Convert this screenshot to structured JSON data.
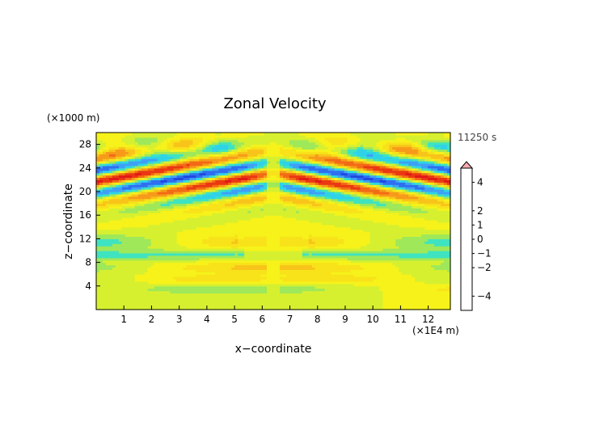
{
  "chart_data": {
    "type": "heatmap",
    "title": "Zonal Velocity",
    "xlabel": "x−coordinate",
    "ylabel": "z−coordinate",
    "x_unit": "(×1E4 m)",
    "y_unit": "(×1000 m)",
    "time_label": "11250 s",
    "xlim": [
      0,
      12.8
    ],
    "ylim": [
      0,
      30
    ],
    "x_ticks": [
      1,
      2,
      3,
      4,
      5,
      6,
      7,
      8,
      9,
      10,
      11,
      12
    ],
    "x_tick_labels": [
      "1",
      "2",
      "3",
      "4",
      "5",
      "6",
      "7",
      "8",
      "9",
      "10",
      "11",
      "12"
    ],
    "y_ticks": [
      4,
      8,
      12,
      16,
      20,
      24,
      28
    ],
    "y_tick_labels": [
      "4",
      "8",
      "12",
      "16",
      "20",
      "24",
      "28"
    ],
    "colorbar": {
      "levels": [
        -5,
        -4.5,
        -4,
        -3.5,
        -3,
        -2.5,
        -2,
        -1.5,
        -1,
        -0.5,
        0,
        0.5,
        1,
        1.5,
        2,
        2.5,
        3,
        3.5,
        4,
        4.5,
        5
      ],
      "colors": [
        "#7b2fbf",
        "#3a1fa6",
        "#1a28c8",
        "#1f48e0",
        "#2f6ff0",
        "#3fa0f5",
        "#2ed3e8",
        "#3fe3c0",
        "#9ee85a",
        "#d6f030",
        "#f6f21a",
        "#f8e21a",
        "#f8c41a",
        "#f79a1a",
        "#f26a16",
        "#ea3812",
        "#e01818",
        "#e84a5a",
        "#f0808a",
        "#f8aab0"
      ],
      "tick_values": [
        4,
        2,
        1,
        0,
        -1,
        -2,
        -4
      ],
      "tick_labels": [
        "4",
        "2",
        "1",
        "0",
        "−1",
        "−2",
        "−4"
      ],
      "extend_top": true
    },
    "field_description_note": "wave pattern of alternating bands"
  }
}
